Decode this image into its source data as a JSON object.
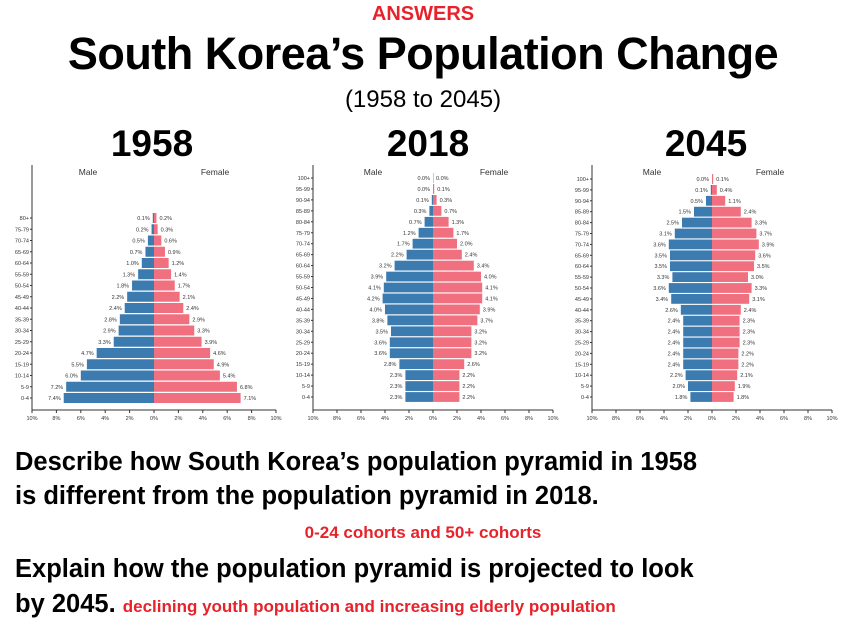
{
  "header": {
    "answers_label": "ANSWERS",
    "title": "South Korea’s Population Change",
    "subtitle": "(1958 to 2045)"
  },
  "colors": {
    "male": "#3b7bb0",
    "female": "#f1707f",
    "answer": "#e8222a"
  },
  "questions": {
    "q1_line1": "Describe how South Korea’s population pyramid in 1958",
    "q1_line2": "is different from the population pyramid in 2018.",
    "a1": "0-24 cohorts and 50+ cohorts",
    "q2_line1": "Explain how the population pyramid is projected to look",
    "q2_line2": "by 2045.",
    "a2": "declining youth population and increasing elderly population"
  },
  "chart_data": [
    {
      "type": "bar",
      "orientation": "population-pyramid",
      "title": "1958",
      "legend": [
        "Male",
        "Female"
      ],
      "xlabel": "",
      "ylabel": "",
      "xlim": [
        -10,
        10
      ],
      "x_ticks": [
        "10%",
        "8%",
        "6%",
        "4%",
        "2%",
        "0%",
        "2%",
        "4%",
        "6%",
        "8%",
        "10%"
      ],
      "categories": [
        "80+",
        "75-79",
        "70-74",
        "65-69",
        "60-64",
        "55-59",
        "50-54",
        "45-49",
        "40-44",
        "35-39",
        "30-34",
        "25-29",
        "20-24",
        "15-19",
        "10-14",
        "5-9",
        "0-4"
      ],
      "series": [
        {
          "name": "Male",
          "values": [
            0.1,
            0.2,
            0.5,
            0.7,
            1.0,
            1.3,
            1.8,
            2.2,
            2.4,
            2.8,
            2.9,
            3.3,
            4.7,
            5.5,
            6.0,
            7.2,
            7.4
          ]
        },
        {
          "name": "Female",
          "values": [
            0.2,
            0.3,
            0.6,
            0.9,
            1.2,
            1.4,
            1.7,
            2.1,
            2.4,
            2.9,
            3.3,
            3.9,
            4.6,
            4.9,
            5.4,
            6.8,
            7.1
          ]
        }
      ]
    },
    {
      "type": "bar",
      "orientation": "population-pyramid",
      "title": "2018",
      "legend": [
        "Male",
        "Female"
      ],
      "xlabel": "",
      "ylabel": "",
      "xlim": [
        -10,
        10
      ],
      "x_ticks": [
        "10%",
        "8%",
        "6%",
        "4%",
        "2%",
        "0%",
        "2%",
        "4%",
        "6%",
        "8%",
        "10%"
      ],
      "categories": [
        "100+",
        "95-99",
        "90-94",
        "85-89",
        "80-84",
        "75-79",
        "70-74",
        "65-69",
        "60-64",
        "55-59",
        "50-54",
        "45-49",
        "40-44",
        "35-39",
        "30-34",
        "25-29",
        "20-24",
        "15-19",
        "10-14",
        "5-9",
        "0-4"
      ],
      "series": [
        {
          "name": "Male",
          "values": [
            0.0,
            0.0,
            0.1,
            0.3,
            0.7,
            1.2,
            1.7,
            2.2,
            3.2,
            3.9,
            4.1,
            4.2,
            4.0,
            3.8,
            3.5,
            3.6,
            3.6,
            2.8,
            2.3,
            2.3,
            2.3
          ]
        },
        {
          "name": "Female",
          "values": [
            0.0,
            0.1,
            0.3,
            0.7,
            1.3,
            1.7,
            2.0,
            2.4,
            3.4,
            4.0,
            4.1,
            4.1,
            3.9,
            3.7,
            3.2,
            3.2,
            3.2,
            2.6,
            2.2,
            2.2,
            2.2
          ]
        }
      ]
    },
    {
      "type": "bar",
      "orientation": "population-pyramid",
      "title": "2045",
      "legend": [
        "Male",
        "Female"
      ],
      "xlabel": "",
      "ylabel": "",
      "xlim": [
        -10,
        10
      ],
      "x_ticks": [
        "10%",
        "8%",
        "6%",
        "4%",
        "2%",
        "0%",
        "2%",
        "4%",
        "6%",
        "8%",
        "10%"
      ],
      "categories": [
        "100+",
        "95-99",
        "90-94",
        "85-89",
        "80-84",
        "75-79",
        "70-74",
        "65-69",
        "60-64",
        "55-59",
        "50-54",
        "45-49",
        "40-44",
        "35-39",
        "30-34",
        "25-29",
        "20-24",
        "15-19",
        "10-14",
        "5-9",
        "0-4"
      ],
      "series": [
        {
          "name": "Male",
          "values": [
            0.0,
            0.1,
            0.5,
            1.5,
            2.5,
            3.1,
            3.6,
            3.5,
            3.5,
            3.3,
            3.6,
            3.4,
            2.6,
            2.4,
            2.4,
            2.4,
            2.4,
            2.4,
            2.2,
            2.0,
            1.8
          ]
        },
        {
          "name": "Female",
          "values": [
            0.1,
            0.4,
            1.1,
            2.4,
            3.3,
            3.7,
            3.9,
            3.6,
            3.5,
            3.0,
            3.3,
            3.1,
            2.4,
            2.3,
            2.3,
            2.3,
            2.2,
            2.2,
            2.1,
            1.9,
            1.8
          ]
        }
      ]
    }
  ]
}
